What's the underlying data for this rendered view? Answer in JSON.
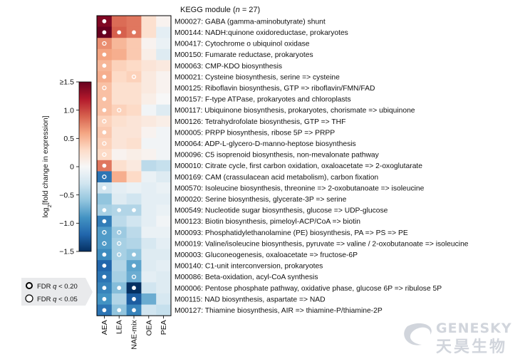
{
  "header": {
    "title_prefix": "KEGG module (",
    "title_n": "n",
    "title_suffix": " = 27)"
  },
  "colorbar": {
    "label_prefix": "log",
    "label_sub": "2",
    "label_suffix": "[fold change in expression]",
    "ticks": [
      {
        "value": 1.5,
        "label": "≥1.5"
      },
      {
        "value": 1.0,
        "label": "1.0"
      },
      {
        "value": 0.5,
        "label": "0.5"
      },
      {
        "value": 0.0,
        "label": "0"
      },
      {
        "value": -0.5,
        "label": "−0.5"
      },
      {
        "value": -1.0,
        "label": "−1.0"
      },
      {
        "value": -1.5,
        "label": "−1.5"
      }
    ]
  },
  "fdr_legend": [
    {
      "label_prefix": "FDR ",
      "label_q": "q",
      "label_suffix": " < 0.20",
      "marker": "filled-white-dot-black-ring"
    },
    {
      "label_prefix": "FDR ",
      "label_q": "q",
      "label_suffix": " < 0.05",
      "marker": "white-dot"
    }
  ],
  "colors": {
    "strong_red": "#67001f",
    "strong_blue": "#053061",
    "neutral": "#f7f7f7",
    "grid_border": "#000000",
    "watermark": "#c9ced6"
  },
  "watermark": {
    "latin": "GENESKY",
    "cjk": "天昊生物"
  },
  "chart_data": {
    "type": "heatmap",
    "columns": [
      "AEA",
      "LEA",
      "NAE-mix",
      "OEA",
      "PEA"
    ],
    "value_range": [
      -1.5,
      1.5
    ],
    "rows": [
      {
        "label": "M00027: GABA (gamma-aminobutyrate) shunt",
        "values": [
          1.4,
          0.85,
          0.8,
          0.25,
          0.05
        ],
        "marks": [
          "filled",
          "",
          "",
          "",
          ""
        ]
      },
      {
        "label": "M00144: NADH:quinone oxidoreductase, prokaryotes",
        "values": [
          1.5,
          0.9,
          0.8,
          0.25,
          -0.15
        ],
        "marks": [
          "filled",
          "filled",
          "filled",
          "",
          ""
        ]
      },
      {
        "label": "M00417: Cytochrome o ubiquinol oxidase",
        "values": [
          0.7,
          0.5,
          0.4,
          0.05,
          -0.1
        ],
        "marks": [
          "ring",
          "",
          "",
          "",
          ""
        ]
      },
      {
        "label": "M00150: Fumarate reductase, prokaryotes",
        "values": [
          0.6,
          0.55,
          0.4,
          0.1,
          -0.2
        ],
        "marks": [
          "filled",
          "",
          "",
          "",
          ""
        ]
      },
      {
        "label": "M00063: CMP-KDO biosynthesis",
        "values": [
          0.5,
          0.35,
          0.3,
          0.2,
          0.15
        ],
        "marks": [
          "filled",
          "",
          "",
          "",
          ""
        ]
      },
      {
        "label": "M00021: Cysteine biosynthesis, serine => cysteine",
        "values": [
          0.55,
          0.3,
          0.35,
          0.15,
          0.05
        ],
        "marks": [
          "filled",
          "",
          "ring",
          "",
          ""
        ]
      },
      {
        "label": "M00125: Riboflavin biosynthesis, GTP => riboflavin/FMN/FAD",
        "values": [
          0.45,
          0.25,
          0.25,
          0.15,
          0.05
        ],
        "marks": [
          "ring",
          "",
          "",
          "",
          ""
        ]
      },
      {
        "label": "M00157: F-type ATPase, prokaryotes and chloroplasts",
        "values": [
          0.45,
          0.25,
          0.25,
          0.1,
          0.0
        ],
        "marks": [
          "filled",
          "",
          "",
          "",
          ""
        ]
      },
      {
        "label": "M00117: Ubiquinone biosynthesis, prokaryotes, chorismate => ubiquinone",
        "values": [
          0.45,
          0.35,
          0.3,
          -0.05,
          -0.2
        ],
        "marks": [
          "filled",
          "ring",
          "",
          "",
          ""
        ]
      },
      {
        "label": "M00126: Tetrahydrofolate biosynthesis, GTP => THF",
        "values": [
          0.35,
          0.25,
          0.2,
          0.15,
          0.1
        ],
        "marks": [
          "ring",
          "",
          "",
          "",
          ""
        ]
      },
      {
        "label": "M00005: PRPP biosynthesis, ribose 5P => PRPP",
        "values": [
          0.4,
          0.2,
          0.2,
          0.05,
          -0.05
        ],
        "marks": [
          "filled",
          "",
          "",
          "",
          ""
        ]
      },
      {
        "label": "M00064: ADP-L-glycero-D-manno-heptose biosynthesis",
        "values": [
          0.35,
          0.2,
          0.25,
          -0.05,
          -0.05
        ],
        "marks": [
          "ring",
          "",
          "",
          "",
          ""
        ]
      },
      {
        "label": "M00096: C5 isoprenoid biosynthesis, non-mevalonate pathway",
        "values": [
          0.3,
          0.05,
          0.1,
          0.05,
          -0.05
        ],
        "marks": [
          "ring",
          "",
          "",
          "",
          ""
        ]
      },
      {
        "label": "M00010: Citrate cycle, first carbon oxidation, oxaloacetate => 2-oxoglutarate",
        "values": [
          0.8,
          0.25,
          0.15,
          -0.4,
          -0.35
        ],
        "marks": [
          "filled",
          "",
          "",
          "",
          ""
        ]
      },
      {
        "label": "M00169: CAM (crassulacean acid metabolism), carbon fixation",
        "values": [
          -1.1,
          0.55,
          0.3,
          -0.1,
          -0.2
        ],
        "marks": [
          "ring",
          "",
          "",
          "",
          ""
        ]
      },
      {
        "label": "M00570: Isoleucine biosynthesis, threonine => 2-oxobutanoate => isoleucine",
        "values": [
          -0.3,
          -0.15,
          -0.1,
          -0.15,
          -0.1
        ],
        "marks": [
          "filled",
          "",
          "",
          "",
          ""
        ]
      },
      {
        "label": "M00020: Serine biosynthesis, glycerate-3P => serine",
        "values": [
          -0.6,
          -0.2,
          -0.3,
          -0.15,
          -0.15
        ],
        "marks": [
          "",
          "",
          "",
          "",
          ""
        ]
      },
      {
        "label": "M00549: Nucleotide sugar biosynthesis, glucose => UDP-glucose",
        "values": [
          -0.5,
          -0.45,
          -0.45,
          -0.15,
          -0.1
        ],
        "marks": [
          "filled",
          "filled",
          "filled",
          "",
          ""
        ]
      },
      {
        "label": "M00123: Biotin biosynthesis, pimeloyl-ACP/CoA => biotin",
        "values": [
          -1.05,
          -0.4,
          -0.3,
          -0.15,
          -0.05
        ],
        "marks": [
          "filled",
          "",
          "",
          "",
          ""
        ]
      },
      {
        "label": "M00093: Phosphatidylethanolamine (PE) biosynthesis, PA => PS => PE",
        "values": [
          -0.85,
          -0.55,
          -0.4,
          -0.1,
          -0.1
        ],
        "marks": [
          "ring",
          "ring",
          "",
          "",
          ""
        ]
      },
      {
        "label": "M00019: Valine/isoleucine biosynthesis, pyruvate => valine / 2-oxobutanoate => isoleucine",
        "values": [
          -0.85,
          -0.5,
          -0.45,
          -0.25,
          -0.15
        ],
        "marks": [
          "ring",
          "ring",
          "",
          "",
          ""
        ]
      },
      {
        "label": "M00003: Gluconeogenesis, oxaloacetate => fructose-6P",
        "values": [
          -0.95,
          -0.5,
          -0.6,
          -0.2,
          -0.2
        ],
        "marks": [
          "filled",
          "ring",
          "filled",
          "",
          ""
        ]
      },
      {
        "label": "M00140: C1-unit interconversion, prokaryotes",
        "values": [
          -1.2,
          -0.45,
          -0.8,
          -0.2,
          -0.15
        ],
        "marks": [
          "filled",
          "",
          "filled",
          "",
          ""
        ]
      },
      {
        "label": "M00086: Beta-oxidation, acyl-CoA synthesis",
        "values": [
          -1.1,
          -0.5,
          -0.75,
          -0.15,
          -0.2
        ],
        "marks": [
          "filled",
          "",
          "ring",
          "",
          ""
        ]
      },
      {
        "label": "M00006: Pentose phosphate pathway, oxidative phase, glucose 6P => ribulose 5P",
        "values": [
          -1.0,
          -0.65,
          -1.5,
          -0.3,
          -0.2
        ],
        "marks": [
          "filled",
          "filled",
          "filled",
          "",
          ""
        ]
      },
      {
        "label": "M00115: NAD biosynthesis, aspartate => NAD",
        "values": [
          -0.9,
          -0.45,
          -1.25,
          -0.75,
          -0.25
        ],
        "marks": [
          "filled",
          "",
          "filled",
          "",
          ""
        ]
      },
      {
        "label": "M00127: Thiamine biosynthesis, AIR => thiamine-P/thiamine-2P",
        "values": [
          -1.1,
          -0.6,
          -1.0,
          -0.3,
          -0.35
        ],
        "marks": [
          "filled",
          "filled",
          "filled",
          "",
          ""
        ]
      }
    ]
  }
}
